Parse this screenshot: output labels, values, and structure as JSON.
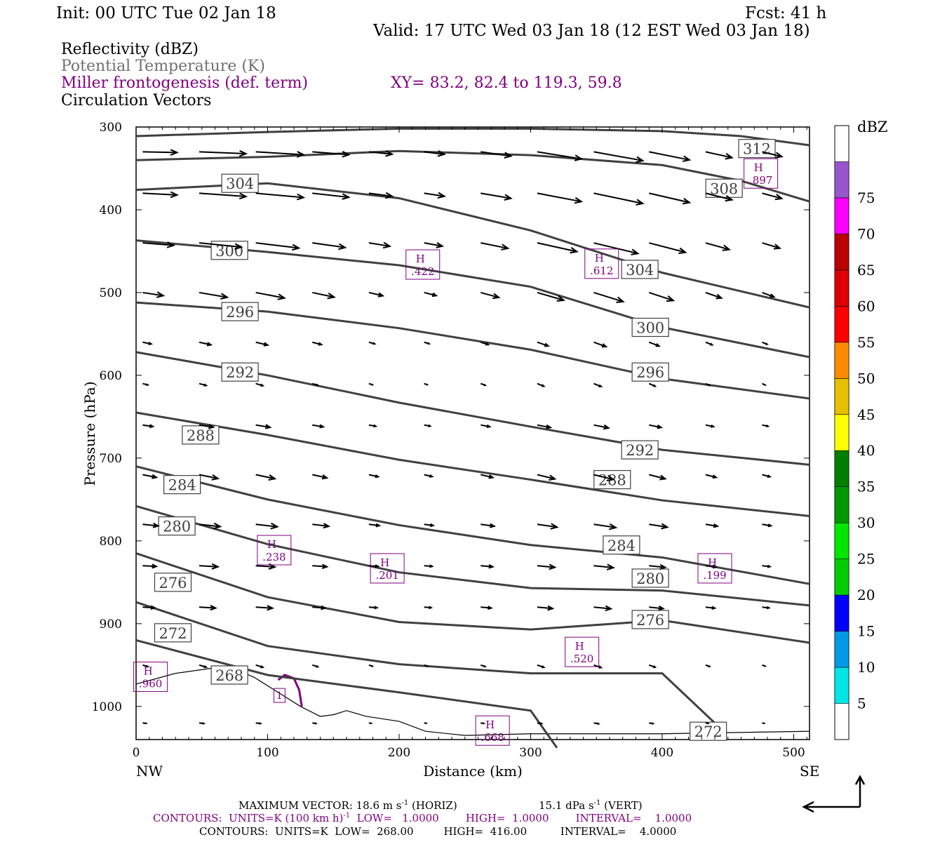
{
  "header": {
    "init": "Init: 00 UTC Tue 02 Jan 18",
    "fcst": "Fcst:   41 h",
    "valid": "Valid: 17 UTC Wed 03 Jan 18 (12 EST Wed 03 Jan 18)",
    "fields": [
      {
        "label": "Reflectivity (dBZ)",
        "color": "#000000"
      },
      {
        "label": "Potential Temperature (K)",
        "color": "#707070"
      },
      {
        "label": "Miller frontogenesis (def. term)",
        "color": "#800080"
      },
      {
        "label": "Circulation Vectors",
        "color": "#000000"
      }
    ],
    "xy": "XY=  83.2, 82.4 to 119.3, 59.8"
  },
  "chart_data": {
    "type": "cross-section",
    "xlabel": "Distance (km)",
    "ylabel": "Pressure (hPa)",
    "xlim": [
      0,
      512
    ],
    "ylim": [
      1040,
      300
    ],
    "x_ticks": [
      "0",
      "100",
      "200",
      "300",
      "400",
      "500"
    ],
    "y_ticks": [
      "300",
      "400",
      "500",
      "600",
      "700",
      "800",
      "900",
      "1000"
    ],
    "left_end": "NW",
    "right_end": "SE",
    "theta_contours": [
      {
        "label": "312",
        "points": [
          [
            0,
            311
          ],
          [
            100,
            306
          ],
          [
            200,
            302
          ],
          [
            300,
            302
          ],
          [
            400,
            305
          ],
          [
            460,
            311
          ],
          [
            512,
            322
          ]
        ],
        "label_at": [
          472,
          326
        ]
      },
      {
        "label": "308",
        "points": [
          [
            0,
            340
          ],
          [
            100,
            336
          ],
          [
            200,
            329
          ],
          [
            300,
            334
          ],
          [
            400,
            346
          ],
          [
            460,
            365
          ],
          [
            512,
            390
          ]
        ],
        "label_at": [
          447,
          374
        ]
      },
      {
        "label": "304",
        "points": [
          [
            0,
            376
          ],
          [
            100,
            368
          ],
          [
            200,
            386
          ],
          [
            300,
            425
          ],
          [
            400,
            476
          ],
          [
            512,
            518
          ]
        ],
        "label_at": [
          79,
          368
        ]
      },
      {
        "label": "304",
        "points": [
          [
            0,
            376
          ]
        ],
        "label_at": [
          383,
          472
        ]
      },
      {
        "label": "300",
        "points": [
          [
            0,
            437
          ],
          [
            100,
            451
          ],
          [
            200,
            467
          ],
          [
            300,
            493
          ],
          [
            400,
            542
          ],
          [
            512,
            578
          ]
        ],
        "label_at": [
          71,
          449
        ]
      },
      {
        "label": "300",
        "points": [
          [
            0,
            437
          ]
        ],
        "label_at": [
          391,
          542
        ]
      },
      {
        "label": "296",
        "points": [
          [
            0,
            512
          ],
          [
            100,
            523
          ],
          [
            200,
            543
          ],
          [
            300,
            569
          ],
          [
            400,
            604
          ],
          [
            512,
            628
          ]
        ],
        "label_at": [
          79,
          523
        ]
      },
      {
        "label": "296",
        "points": [
          [
            0,
            512
          ]
        ],
        "label_at": [
          391,
          596
        ]
      },
      {
        "label": "292",
        "points": [
          [
            0,
            572
          ],
          [
            100,
            600
          ],
          [
            200,
            633
          ],
          [
            300,
            662
          ],
          [
            400,
            690
          ],
          [
            512,
            708
          ]
        ],
        "label_at": [
          79,
          596
        ]
      },
      {
        "label": "292",
        "points": [
          [
            0,
            572
          ]
        ],
        "label_at": [
          383,
          690
        ]
      },
      {
        "label": "288",
        "points": [
          [
            0,
            645
          ],
          [
            100,
            672
          ],
          [
            200,
            702
          ],
          [
            300,
            726
          ],
          [
            400,
            751
          ],
          [
            512,
            770
          ]
        ],
        "label_at": [
          49,
          672
        ]
      },
      {
        "label": "288",
        "points": [
          [
            0,
            645
          ]
        ],
        "label_at": [
          362,
          726
        ]
      },
      {
        "label": "284",
        "points": [
          [
            0,
            710
          ],
          [
            100,
            750
          ],
          [
            200,
            781
          ],
          [
            300,
            805
          ],
          [
            400,
            820
          ],
          [
            512,
            852
          ]
        ],
        "label_at": [
          35,
          732
        ]
      },
      {
        "label": "284",
        "points": [
          [
            0,
            710
          ]
        ],
        "label_at": [
          369,
          805
        ]
      },
      {
        "label": "280",
        "points": [
          [
            0,
            758
          ],
          [
            100,
            804
          ],
          [
            200,
            838
          ],
          [
            300,
            857
          ],
          [
            400,
            860
          ],
          [
            512,
            878
          ]
        ],
        "label_at": [
          31,
          782
        ]
      },
      {
        "label": "280",
        "points": [
          [
            0,
            758
          ]
        ],
        "label_at": [
          391,
          845
        ]
      },
      {
        "label": "276",
        "points": [
          [
            0,
            815
          ],
          [
            100,
            868
          ],
          [
            200,
            898
          ],
          [
            300,
            907
          ],
          [
            400,
            896
          ],
          [
            512,
            923
          ]
        ],
        "label_at": [
          28,
          850
        ]
      },
      {
        "label": "276",
        "points": [
          [
            0,
            815
          ]
        ],
        "label_at": [
          391,
          895
        ]
      },
      {
        "label": "272",
        "points": [
          [
            0,
            874
          ],
          [
            100,
            927
          ],
          [
            200,
            949
          ],
          [
            300,
            960
          ],
          [
            400,
            960
          ],
          [
            440,
            1020
          ]
        ],
        "label_at": [
          28,
          911
        ]
      },
      {
        "label": "272",
        "points": [
          [
            0,
            874
          ]
        ],
        "label_at": [
          435,
          1030
        ]
      },
      {
        "label": "268",
        "points": [
          [
            0,
            920
          ],
          [
            100,
            962
          ],
          [
            200,
            983
          ],
          [
            300,
            1005
          ],
          [
            320,
            1050
          ]
        ],
        "label_at": [
          71,
          962
        ]
      }
    ],
    "frontogenesis_maxima": [
      {
        "label": "H",
        "value": ".897",
        "x": 475,
        "p": 357
      },
      {
        "label": "H",
        "value": ".422",
        "x": 218,
        "p": 467
      },
      {
        "label": "H",
        "value": ".612",
        "x": 354,
        "p": 466
      },
      {
        "label": "H",
        "value": ".238",
        "x": 105,
        "p": 812
      },
      {
        "label": "H",
        "value": ".201",
        "x": 191,
        "p": 834
      },
      {
        "label": "H",
        "value": ".199",
        "x": 440,
        "p": 834
      },
      {
        "label": "H",
        "value": ".520",
        "x": 339,
        "p": 935
      },
      {
        "label": "H",
        "value": ".960",
        "x": 11,
        "p": 965
      },
      {
        "label": "H",
        "value": ".668",
        "x": 271,
        "p": 1030
      }
    ],
    "frontogenesis_contour_label": "1",
    "colorbar": {
      "unit": "dBZ",
      "levels": [
        "5",
        "10",
        "15",
        "20",
        "25",
        "30",
        "35",
        "40",
        "45",
        "50",
        "55",
        "60",
        "65",
        "70",
        "75"
      ],
      "colors": [
        "#00e5e5",
        "#0099e6",
        "#0000ff",
        "#00cc00",
        "#00e600",
        "#009900",
        "#007f00",
        "#ffff00",
        "#e6bf00",
        "#ff8c00",
        "#ff0000",
        "#dd0000",
        "#bb0000",
        "#ff00ff",
        "#9955cc"
      ]
    }
  },
  "footer": {
    "max_vector": "MAXIMUM VECTOR:  18.6 m s",
    "max_vector_sup": "-1",
    "max_vector_h": " (HORIZ)",
    "max_vector_v": "15.1 dPa s",
    "max_vector_v_sup": "-1",
    "max_vector_v_tail": " (VERT)",
    "contours_purple_a": "CONTOURS:  UNITS=K (100 km h)",
    "contours_purple_sup": "-1",
    "contours_purple_b": "  LOW=   1.0000        HIGH=  1.0000        INTERVAL=    1.0000",
    "contours_black": "CONTOURS:  UNITS=K  LOW=  268.00         HIGH=  416.00          INTERVAL=    4.0000"
  }
}
